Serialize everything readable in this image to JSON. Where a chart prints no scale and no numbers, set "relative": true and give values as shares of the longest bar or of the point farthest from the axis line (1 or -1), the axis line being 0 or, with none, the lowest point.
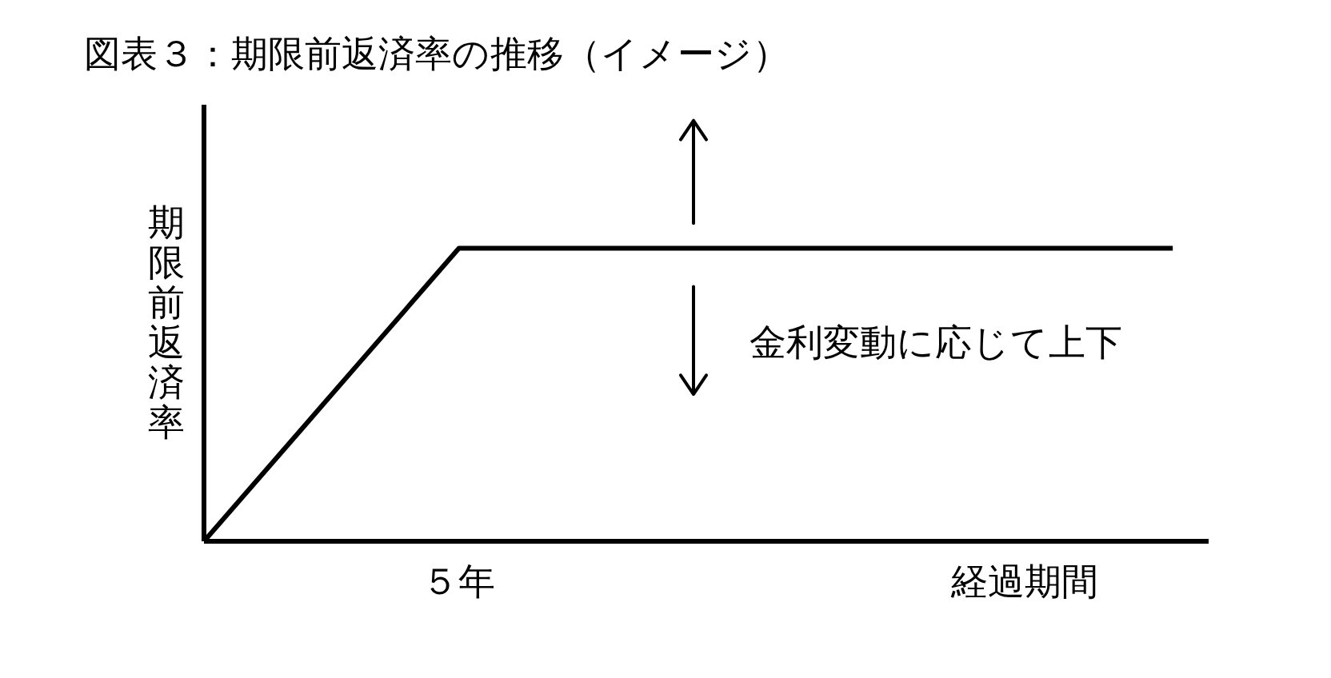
{
  "chart_data": {
    "type": "line",
    "title": "図表３：期限前返済率の推移（イメージ）",
    "xlabel": "経過期間",
    "ylabel": "期限前返済率",
    "categories": [
      null,
      null,
      null,
      null,
      null,
      null,
      null,
      null,
      null,
      null,
      null,
      null,
      null,
      null,
      null,
      null,
      null,
      null,
      null,
      null
    ],
    "values": [
      0,
      0.2,
      0.4,
      0.6,
      0.8,
      1,
      1,
      1,
      1,
      1,
      1,
      1,
      1,
      1,
      1,
      1,
      1,
      1,
      1,
      1
    ],
    "color": "#000000",
    "relative": true,
    "annotations": [
      "５年",
      "金利変動に応じて上下"
    ]
  }
}
